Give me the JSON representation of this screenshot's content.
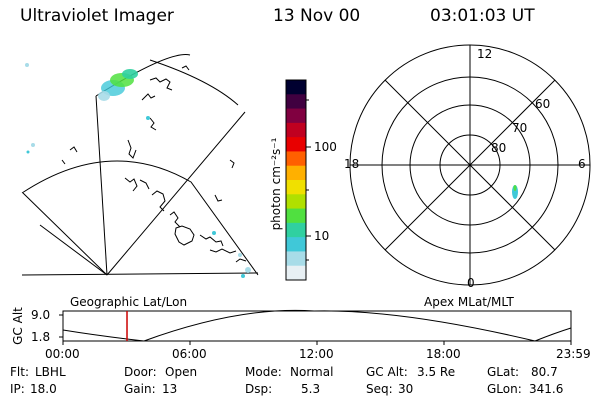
{
  "header": {
    "title": "Ultraviolet Imager",
    "date": "13 Nov 00",
    "time": "03:01:03 UT"
  },
  "geo_panel": {
    "label": "Geographic Lat/Lon"
  },
  "colorbar": {
    "unit_label": "photon cm⁻²s⁻¹",
    "tick_labels": [
      "100",
      "10"
    ],
    "stops": [
      "#000030",
      "#400040",
      "#800040",
      "#c00020",
      "#e80000",
      "#ff6000",
      "#ffb000",
      "#f0e000",
      "#b0e000",
      "#50e040",
      "#30d0a0",
      "#40c8d8",
      "#a8dce8",
      "#e8f0f4"
    ]
  },
  "polar_panel": {
    "label": "Apex MLat/MLT",
    "mlt_labels": {
      "top": "12",
      "bottom": "0",
      "left": "18",
      "right": "6"
    },
    "lat_labels": [
      "60",
      "70",
      "80"
    ]
  },
  "altitude_plot": {
    "ylabel": "GC Alt",
    "y_ticks": [
      "9.0",
      "1.8"
    ],
    "x_ticks": [
      "00:00",
      "06:00",
      "12:00",
      "18:00",
      "23:59"
    ],
    "marker_color": "#cc0000",
    "current_time_fraction": 0.126
  },
  "status": {
    "row1": [
      {
        "label": "Flt:",
        "value": "LBHL"
      },
      {
        "label": "Door:",
        "value": "Open"
      },
      {
        "label": "Mode:",
        "value": "Normal"
      },
      {
        "label": "GC Alt:",
        "value": "3.5 Re"
      },
      {
        "label": "GLat:",
        "value": "80.7"
      }
    ],
    "row2": [
      {
        "label": "IP:",
        "value": "18.0"
      },
      {
        "label": "Gain:",
        "value": "13"
      },
      {
        "label": "Dsp:",
        "value": "5.3"
      },
      {
        "label": "Seq:",
        "value": "30"
      },
      {
        "label": "GLon:",
        "value": "341.6"
      }
    ]
  }
}
